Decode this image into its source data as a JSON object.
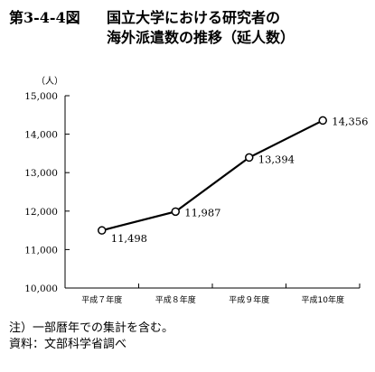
{
  "figure": {
    "number": "第3-4-4図",
    "title_line1": "国立大学における研究者の",
    "title_line2": "海外派遣数の推移（延人数）"
  },
  "chart_data": {
    "type": "line",
    "title": "国立大学における研究者の海外派遣数の推移（延人数）",
    "unit_label": "（人）",
    "categories": [
      "平成７年度",
      "平成８年度",
      "平成９年度",
      "平成10年度"
    ],
    "values": [
      11498,
      11987,
      13394,
      14356
    ],
    "value_labels": [
      "11,498",
      "11,987",
      "13,394",
      "14,356"
    ],
    "y_ticks": [
      10000,
      11000,
      12000,
      13000,
      14000,
      15000
    ],
    "y_tick_labels": [
      "10,000",
      "11,000",
      "12,000",
      "13,000",
      "14,000",
      "15,000"
    ],
    "ylim": [
      10000,
      15000
    ],
    "grid": false,
    "marker": "open-circle"
  },
  "notes": {
    "note": "注）一部暦年での集計を含む。",
    "source": "資料：文部科学省調べ"
  }
}
